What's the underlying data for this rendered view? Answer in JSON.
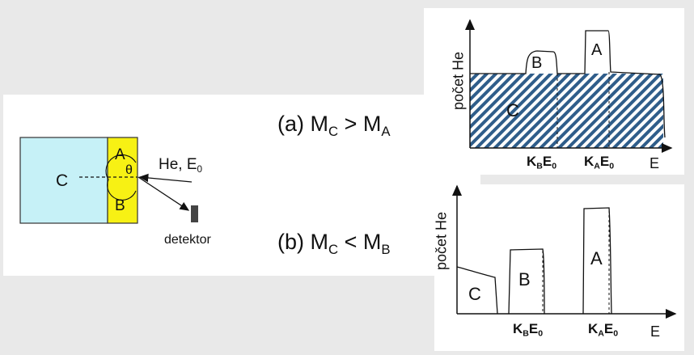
{
  "colors": {
    "background": "#e9e9e9",
    "panel": "#ffffff",
    "region_c": "#c6f1f7",
    "layer_ab": "#f7f114",
    "hatch": "#2f5d8a",
    "ink": "#111111"
  },
  "sample": {
    "region_c": "C",
    "layer_a": "A",
    "layer_b": "B",
    "angle": "θ",
    "beam_main": "He, E",
    "beam_sub": "0",
    "detector": "detektor"
  },
  "case_a": {
    "prefix": "(a) M",
    "sub1": "C",
    "op": " > M",
    "sub2": "A"
  },
  "case_b": {
    "prefix": "(b) M",
    "sub1": "C",
    "op": " < M",
    "sub2": "B"
  },
  "graph_top": {
    "ylabel": "počet He",
    "xlabel": "E",
    "peak_c": "C",
    "peak_b": "B",
    "peak_a": "A",
    "kb_k": "K",
    "kb_sub": "B",
    "kb_e": "E",
    "kb_esub": "0",
    "ka_k": "K",
    "ka_sub": "A",
    "ka_e": "E",
    "ka_esub": "0"
  },
  "graph_bottom": {
    "ylabel": "počet He",
    "xlabel": "E",
    "peak_c": "C",
    "peak_b": "B",
    "peak_a": "A",
    "kb_k": "K",
    "kb_sub": "B",
    "kb_e": "E",
    "kb_esub": "0",
    "ka_k": "K",
    "ka_sub": "A",
    "ka_e": "E",
    "ka_esub": "0"
  }
}
